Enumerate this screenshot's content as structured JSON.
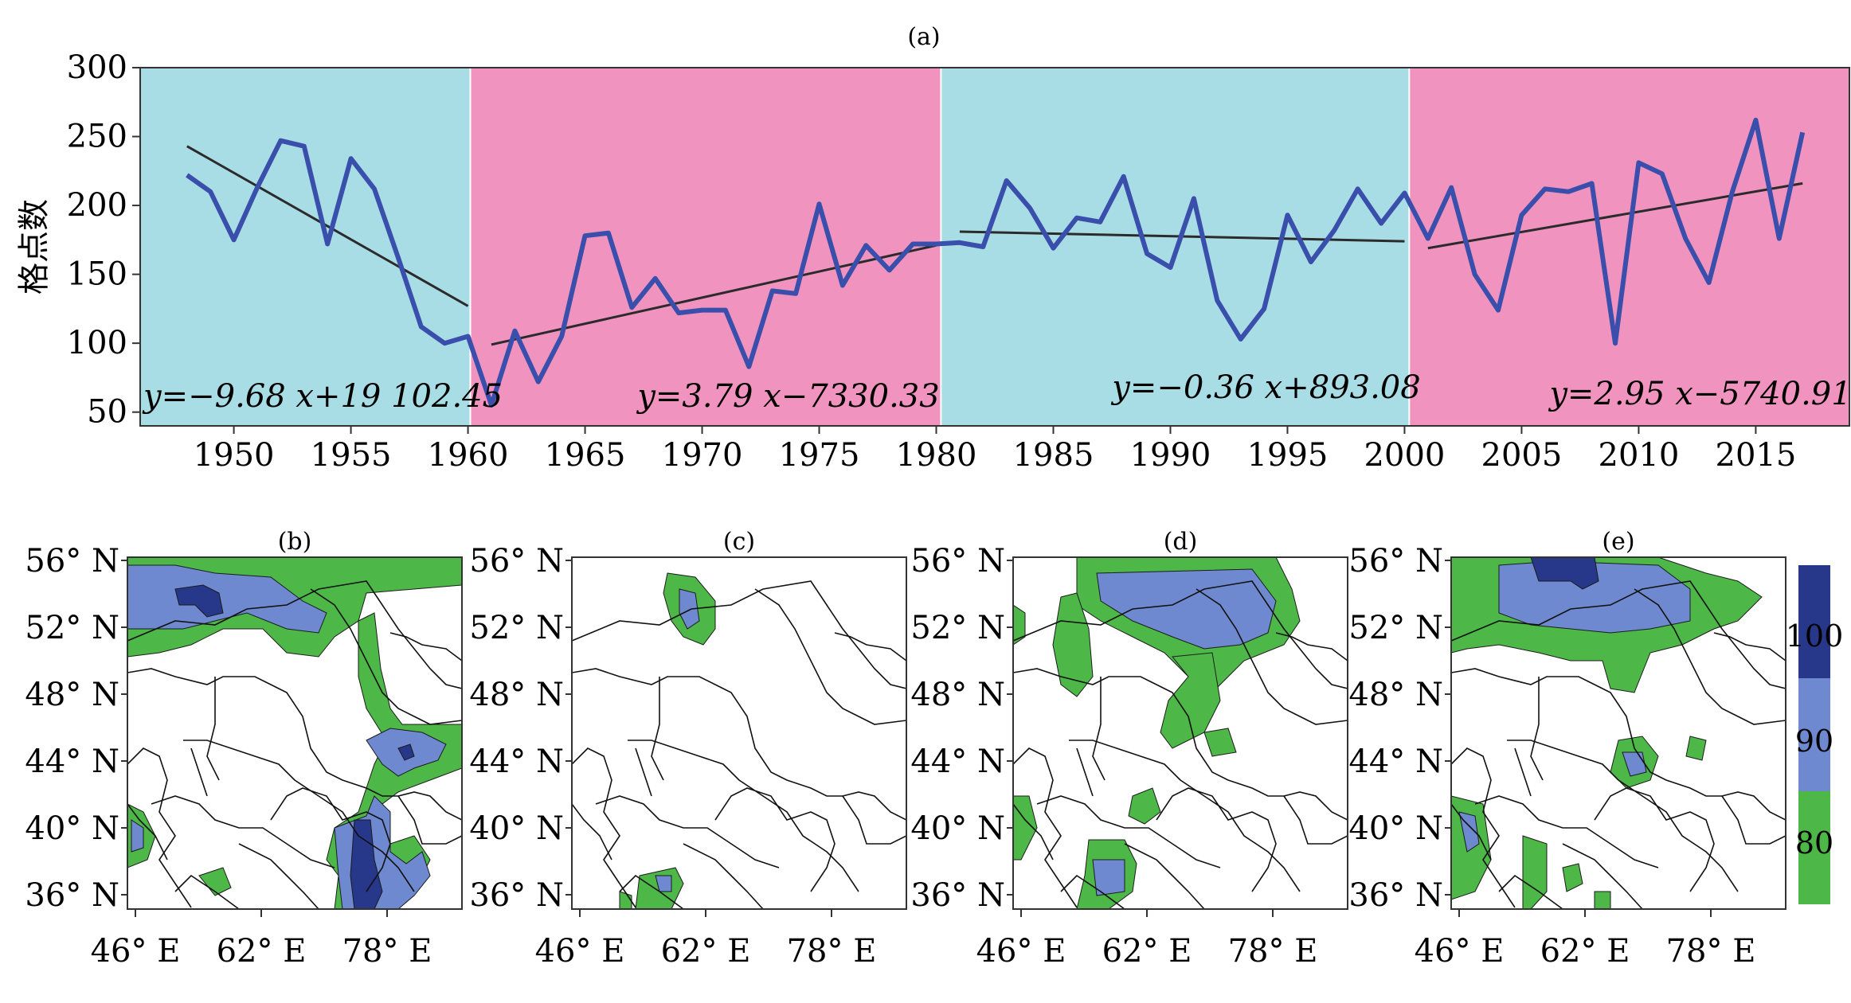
{
  "chart_data": [
    {
      "panel": "(a)",
      "type": "line",
      "title": "(a)",
      "ylabel": "格点数",
      "xlabel": "",
      "xlim": [
        1946,
        2019
      ],
      "ylim": [
        40,
        300
      ],
      "yticks": [
        50,
        100,
        150,
        200,
        250,
        300
      ],
      "xticks": [
        1950,
        1955,
        1960,
        1965,
        1970,
        1975,
        1980,
        1985,
        1990,
        1995,
        2000,
        2005,
        2010,
        2015
      ],
      "colors": {
        "series": "#3a4fab",
        "trend": "#2b2b2b",
        "cyan": "#a8dde5",
        "pink": "#f094bf"
      },
      "periods": [
        {
          "from": 1946,
          "to": 1960.1,
          "color": "cyan"
        },
        {
          "from": 1960.1,
          "to": 1980.2,
          "color": "pink"
        },
        {
          "from": 1980.2,
          "to": 2000.2,
          "color": "cyan"
        },
        {
          "from": 2000.2,
          "to": 2019,
          "color": "pink"
        }
      ],
      "x": [
        1948,
        1949,
        1950,
        1951,
        1952,
        1953,
        1954,
        1955,
        1956,
        1957,
        1958,
        1959,
        1960,
        1961,
        1962,
        1963,
        1964,
        1965,
        1966,
        1967,
        1968,
        1969,
        1970,
        1971,
        1972,
        1973,
        1974,
        1975,
        1976,
        1977,
        1978,
        1979,
        1980,
        1981,
        1982,
        1983,
        1984,
        1985,
        1986,
        1987,
        1988,
        1989,
        1990,
        1991,
        1992,
        1993,
        1994,
        1995,
        1996,
        1997,
        1998,
        1999,
        2000,
        2001,
        2002,
        2003,
        2004,
        2005,
        2006,
        2007,
        2008,
        2009,
        2010,
        2011,
        2012,
        2013,
        2014,
        2015,
        2016,
        2017
      ],
      "series": [
        {
          "values": [
            222,
            210,
            175,
            213,
            247,
            243,
            172,
            234,
            212,
            163,
            112,
            100,
            105,
            55,
            109,
            72,
            105,
            178,
            180,
            126,
            147,
            122,
            124,
            124,
            83,
            138,
            136,
            201,
            142,
            171,
            153,
            172,
            172,
            173,
            170,
            218,
            198,
            169,
            191,
            188,
            221,
            165,
            155,
            205,
            131,
            103,
            125,
            193,
            159,
            182,
            212,
            187,
            209,
            176,
            213,
            150,
            124,
            193,
            212,
            210,
            216,
            100,
            231,
            223,
            176,
            144,
            210,
            262,
            176,
            253
          ]
        }
      ],
      "trends": [
        {
          "equation": "y=−9.68 x+19 102.45",
          "from": 1948,
          "to": 1960,
          "y_start": 243,
          "y_end": 127
        },
        {
          "equation": "y=3.79 x−7330.33",
          "from": 1961,
          "to": 1980,
          "y_start": 99,
          "y_end": 171
        },
        {
          "equation": "y=−0.36 x+893.08",
          "from": 1981,
          "to": 2000,
          "y_start": 181,
          "y_end": 174
        },
        {
          "equation": "y=2.95 x−5740.91",
          "from": 2001,
          "to": 2017,
          "y_start": 169,
          "y_end": 216
        }
      ]
    },
    {
      "panel": "(b)",
      "type": "heatmap",
      "title": "(b)",
      "lat_ticks": [
        "56° N",
        "52° N",
        "48° N",
        "44° N",
        "40° N",
        "36° N"
      ],
      "lon_ticks": [
        "46° E",
        "62° E",
        "78° E"
      ]
    },
    {
      "panel": "(c)",
      "type": "heatmap",
      "title": "(c)",
      "lat_ticks": [
        "56° N",
        "52° N",
        "48° N",
        "44° N",
        "40° N",
        "36° N"
      ],
      "lon_ticks": [
        "46° E",
        "62° E",
        "78° E"
      ]
    },
    {
      "panel": "(d)",
      "type": "heatmap",
      "title": "(d)",
      "lat_ticks": [
        "56° N",
        "52° N",
        "48° N",
        "44° N",
        "40° N",
        "36° N"
      ],
      "lon_ticks": [
        "46° E",
        "62° E",
        "78° E"
      ]
    },
    {
      "panel": "(e)",
      "type": "heatmap",
      "title": "(e)",
      "lat_ticks": [
        "56° N",
        "52° N",
        "48° N",
        "44° N",
        "40° N",
        "36° N"
      ],
      "lon_ticks": [
        "46° E",
        "62° E",
        "78° E"
      ]
    }
  ],
  "colorbar": {
    "labels": [
      "100",
      "90",
      "80"
    ],
    "colors": [
      "#27378a",
      "#6e89cf",
      "#4db848"
    ]
  }
}
